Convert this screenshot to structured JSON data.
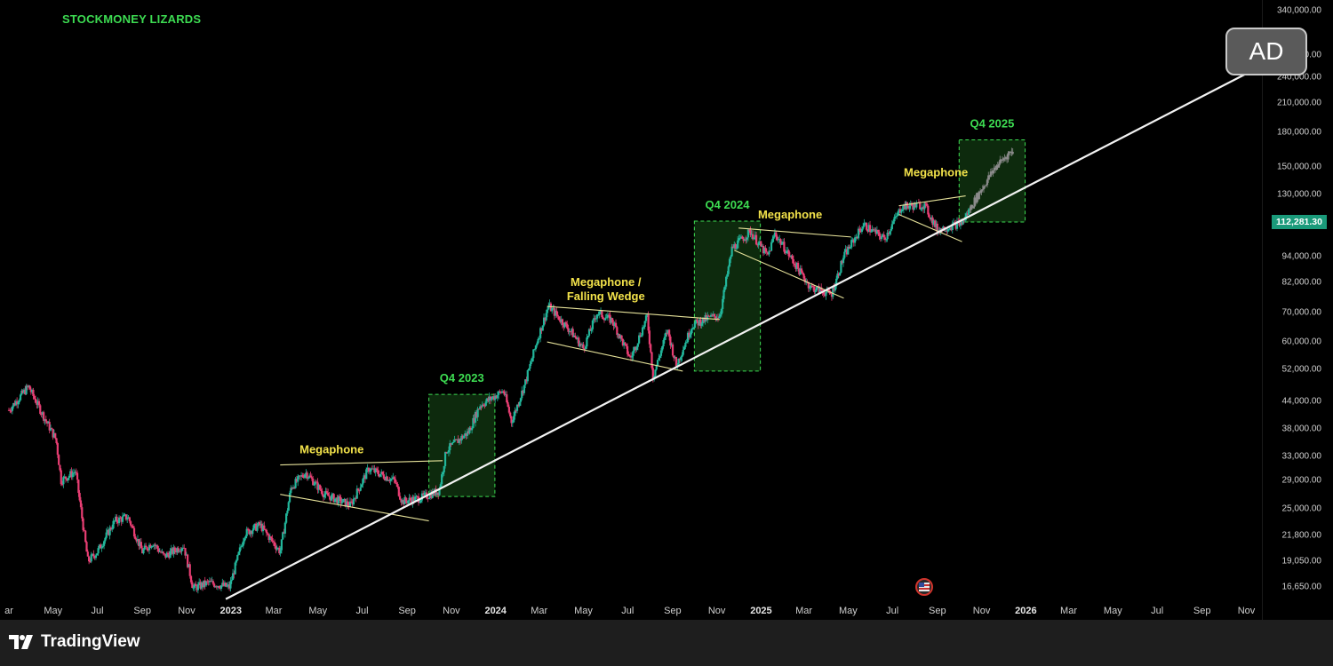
{
  "brand": "STOCKMONEY LIZARDS",
  "ad_badge": "AD",
  "footer": {
    "logo_text": "TradingView"
  },
  "current_price": "112,281.30",
  "colors": {
    "up": "#22b59a",
    "down": "#e83e73",
    "grey": "#8a8a8a",
    "box": "#0d2a0d",
    "box_border": "#3ddc52",
    "pattern_label": "#f2e24a",
    "quarter_label": "#3ddc52",
    "price_badge": "#1a9a7a"
  },
  "chart_data": {
    "type": "candlestick",
    "scale": "log",
    "ylim": [
      15500,
      360000
    ],
    "xlim": [
      "2022-03",
      "2026-12"
    ],
    "y_ticks": [
      "340,000.00",
      "270,000.00",
      "240,000.00",
      "210,000.00",
      "180,000.00",
      "150,000.00",
      "130,000.00",
      "94,000.00",
      "82,000.00",
      "70,000.00",
      "60,000.00",
      "52,000.00",
      "44,000.00",
      "38,000.00",
      "33,000.00",
      "29,000.00",
      "25,000.00",
      "21,800.00",
      "19,050.00",
      "16,650.00"
    ],
    "x_ticks": [
      {
        "label": "ar",
        "date": "2022-03",
        "year": false
      },
      {
        "label": "May",
        "date": "2022-05",
        "year": false
      },
      {
        "label": "Jul",
        "date": "2022-07",
        "year": false
      },
      {
        "label": "Sep",
        "date": "2022-09",
        "year": false
      },
      {
        "label": "Nov",
        "date": "2022-11",
        "year": false
      },
      {
        "label": "2023",
        "date": "2023-01",
        "year": true
      },
      {
        "label": "Mar",
        "date": "2023-03",
        "year": false
      },
      {
        "label": "May",
        "date": "2023-05",
        "year": false
      },
      {
        "label": "Jul",
        "date": "2023-07",
        "year": false
      },
      {
        "label": "Sep",
        "date": "2023-09",
        "year": false
      },
      {
        "label": "Nov",
        "date": "2023-11",
        "year": false
      },
      {
        "label": "2024",
        "date": "2024-01",
        "year": true
      },
      {
        "label": "Mar",
        "date": "2024-03",
        "year": false
      },
      {
        "label": "May",
        "date": "2024-05",
        "year": false
      },
      {
        "label": "Jul",
        "date": "2024-07",
        "year": false
      },
      {
        "label": "Sep",
        "date": "2024-09",
        "year": false
      },
      {
        "label": "Nov",
        "date": "2024-11",
        "year": false
      },
      {
        "label": "2025",
        "date": "2025-01",
        "year": true
      },
      {
        "label": "Mar",
        "date": "2025-03",
        "year": false
      },
      {
        "label": "May",
        "date": "2025-05",
        "year": false
      },
      {
        "label": "Jul",
        "date": "2025-07",
        "year": false
      },
      {
        "label": "Sep",
        "date": "2025-09",
        "year": false
      },
      {
        "label": "Nov",
        "date": "2025-11",
        "year": false
      },
      {
        "label": "2026",
        "date": "2026-01",
        "year": true
      },
      {
        "label": "Mar",
        "date": "2026-03",
        "year": false
      },
      {
        "label": "May",
        "date": "2026-05",
        "year": false
      },
      {
        "label": "Jul",
        "date": "2026-07",
        "year": false
      },
      {
        "label": "Sep",
        "date": "2026-09",
        "year": false
      },
      {
        "label": "Nov",
        "date": "2026-11",
        "year": false
      }
    ],
    "price_path": [
      {
        "date": "2022-03-01",
        "price": 42000
      },
      {
        "date": "2022-03-28",
        "price": 47500
      },
      {
        "date": "2022-04-20",
        "price": 40000
      },
      {
        "date": "2022-05-05",
        "price": 36000
      },
      {
        "date": "2022-05-12",
        "price": 29000
      },
      {
        "date": "2022-06-01",
        "price": 30500
      },
      {
        "date": "2022-06-18",
        "price": 19000
      },
      {
        "date": "2022-07-01",
        "price": 20000
      },
      {
        "date": "2022-07-25",
        "price": 23500
      },
      {
        "date": "2022-08-12",
        "price": 24000
      },
      {
        "date": "2022-09-01",
        "price": 20000
      },
      {
        "date": "2022-09-15",
        "price": 21000
      },
      {
        "date": "2022-10-01",
        "price": 19500
      },
      {
        "date": "2022-10-28",
        "price": 20700
      },
      {
        "date": "2022-11-10",
        "price": 16500
      },
      {
        "date": "2022-12-01",
        "price": 17000
      },
      {
        "date": "2022-12-30",
        "price": 16600
      },
      {
        "date": "2023-01-20",
        "price": 22000
      },
      {
        "date": "2023-02-10",
        "price": 23000
      },
      {
        "date": "2023-03-10",
        "price": 20000
      },
      {
        "date": "2023-03-25",
        "price": 28000
      },
      {
        "date": "2023-04-14",
        "price": 30300
      },
      {
        "date": "2023-05-10",
        "price": 27000
      },
      {
        "date": "2023-06-15",
        "price": 25500
      },
      {
        "date": "2023-07-10",
        "price": 30900
      },
      {
        "date": "2023-08-15",
        "price": 29000
      },
      {
        "date": "2023-08-25",
        "price": 26000
      },
      {
        "date": "2023-09-20",
        "price": 26500
      },
      {
        "date": "2023-10-15",
        "price": 27500
      },
      {
        "date": "2023-10-25",
        "price": 34000
      },
      {
        "date": "2023-11-25",
        "price": 37500
      },
      {
        "date": "2023-12-10",
        "price": 43000
      },
      {
        "date": "2024-01-12",
        "price": 46500
      },
      {
        "date": "2024-01-23",
        "price": 39500
      },
      {
        "date": "2024-02-10",
        "price": 48000
      },
      {
        "date": "2024-02-28",
        "price": 61000
      },
      {
        "date": "2024-03-14",
        "price": 72500
      },
      {
        "date": "2024-04-15",
        "price": 63000
      },
      {
        "date": "2024-05-01",
        "price": 58000
      },
      {
        "date": "2024-05-20",
        "price": 70000
      },
      {
        "date": "2024-06-10",
        "price": 67000
      },
      {
        "date": "2024-07-05",
        "price": 55000
      },
      {
        "date": "2024-07-28",
        "price": 68500
      },
      {
        "date": "2024-08-05",
        "price": 50000
      },
      {
        "date": "2024-08-25",
        "price": 64000
      },
      {
        "date": "2024-09-06",
        "price": 53000
      },
      {
        "date": "2024-09-28",
        "price": 65500
      },
      {
        "date": "2024-10-20",
        "price": 68000
      },
      {
        "date": "2024-11-05",
        "price": 69000
      },
      {
        "date": "2024-11-22",
        "price": 98000
      },
      {
        "date": "2024-12-17",
        "price": 107000
      },
      {
        "date": "2025-01-10",
        "price": 94000
      },
      {
        "date": "2025-01-20",
        "price": 106000
      },
      {
        "date": "2025-02-25",
        "price": 86000
      },
      {
        "date": "2025-03-10",
        "price": 80000
      },
      {
        "date": "2025-04-08",
        "price": 77000
      },
      {
        "date": "2025-04-25",
        "price": 94000
      },
      {
        "date": "2025-05-22",
        "price": 111000
      },
      {
        "date": "2025-06-20",
        "price": 103000
      },
      {
        "date": "2025-07-14",
        "price": 122000
      },
      {
        "date": "2025-08-14",
        "price": 123000
      },
      {
        "date": "2025-09-01",
        "price": 108000
      },
      {
        "date": "2025-10-05",
        "price": 112000
      },
      {
        "date": "2025-10-25",
        "price": 128000
      },
      {
        "date": "2025-11-20",
        "price": 150000
      },
      {
        "date": "2025-12-10",
        "price": 162000
      }
    ],
    "trendline": {
      "from": {
        "date": "2022-12-25",
        "price": 15600
      },
      "to": {
        "date": "2026-11-20",
        "price": 254000
      }
    },
    "boxes": [
      {
        "label": "Q4 2023",
        "from": "2023-10-01",
        "to": "2023-12-31",
        "ylow": 26700,
        "yhigh": 45600
      },
      {
        "label": "Q4 2024",
        "from": "2024-10-01",
        "to": "2024-12-31",
        "ylow": 51500,
        "yhigh": 113000
      },
      {
        "label": "Q4 2025",
        "from": "2025-10-01",
        "to": "2025-12-31",
        "ylow": 112500,
        "yhigh": 173000
      }
    ],
    "pattern_labels": [
      {
        "lines": [
          "Megaphone"
        ],
        "date": "2023-05-20",
        "price": 33500
      },
      {
        "lines": [
          "Megaphone /",
          "Falling Wedge"
        ],
        "date": "2024-06-01",
        "price": 80500
      },
      {
        "lines": [
          "Megaphone"
        ],
        "date": "2025-02-10",
        "price": 114500
      },
      {
        "lines": [
          "Megaphone"
        ],
        "date": "2025-08-30",
        "price": 143000
      }
    ],
    "pattern_lines": [
      {
        "from": {
          "date": "2023-03-10",
          "price": 31500
        },
        "to": {
          "date": "2023-10-20",
          "price": 32200
        }
      },
      {
        "from": {
          "date": "2023-03-10",
          "price": 27000
        },
        "to": {
          "date": "2023-10-01",
          "price": 23500
        }
      },
      {
        "from": {
          "date": "2024-03-12",
          "price": 72300
        },
        "to": {
          "date": "2024-11-05",
          "price": 67500
        }
      },
      {
        "from": {
          "date": "2024-03-12",
          "price": 60000
        },
        "to": {
          "date": "2024-09-15",
          "price": 51500
        }
      },
      {
        "from": {
          "date": "2024-12-01",
          "price": 109000
        },
        "to": {
          "date": "2025-05-05",
          "price": 104000
        }
      },
      {
        "from": {
          "date": "2024-11-25",
          "price": 97000
        },
        "to": {
          "date": "2025-04-25",
          "price": 75500
        }
      },
      {
        "from": {
          "date": "2025-07-10",
          "price": 122500
        },
        "to": {
          "date": "2025-10-10",
          "price": 129000
        }
      },
      {
        "from": {
          "date": "2025-07-10",
          "price": 117000
        },
        "to": {
          "date": "2025-10-05",
          "price": 101500
        }
      }
    ]
  }
}
